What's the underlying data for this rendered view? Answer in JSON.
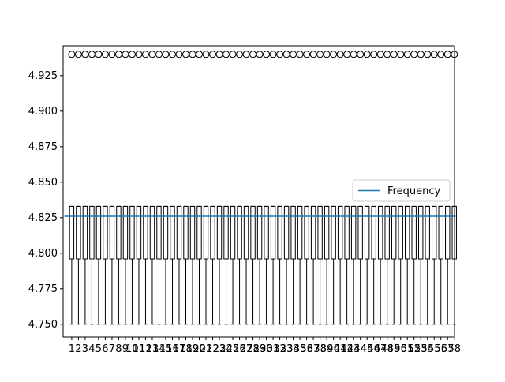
{
  "chart_data": {
    "type": "box",
    "title": "",
    "xlabel": "",
    "ylabel": "",
    "ylim": [
      4.741,
      4.946
    ],
    "xlim": [
      -0.28,
      58.03
    ],
    "y_ticks": [
      4.75,
      4.775,
      4.8,
      4.825,
      4.85,
      4.875,
      4.9,
      4.925
    ],
    "y_tick_labels": [
      "4.750",
      "4.775",
      "4.800",
      "4.825",
      "4.850",
      "4.875",
      "4.900",
      "4.925"
    ],
    "categories": [
      "1",
      "2",
      "3",
      "4",
      "5",
      "6",
      "7",
      "8",
      "9",
      "10",
      "11",
      "12",
      "13",
      "14",
      "15",
      "16",
      "17",
      "18",
      "19",
      "20",
      "21",
      "22",
      "23",
      "24",
      "25",
      "26",
      "27",
      "28",
      "29",
      "30",
      "31",
      "32",
      "33",
      "34",
      "35",
      "36",
      "37",
      "38",
      "39",
      "40",
      "41",
      "42",
      "43",
      "44",
      "45",
      "46",
      "47",
      "48",
      "49",
      "50",
      "51",
      "52",
      "53",
      "54",
      "55",
      "56",
      "57",
      "58"
    ],
    "box_stats": {
      "whisker_low": 4.75,
      "q1": 4.796,
      "median": 4.808,
      "q3": 4.833,
      "whisker_high": 4.833,
      "outlier": 4.94
    },
    "series": [
      {
        "name": "Frequency",
        "type": "line",
        "y": 4.826,
        "color": "#1f77b4"
      }
    ],
    "median_color": "#ff7f0e",
    "legend": {
      "position": "center-right",
      "entries": [
        "Frequency"
      ]
    },
    "grid": false
  }
}
